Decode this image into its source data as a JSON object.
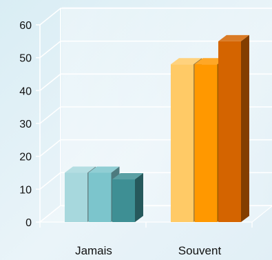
{
  "chart_data": {
    "type": "bar",
    "style": "3d-clustered-columns",
    "categories": [
      "Jamais",
      "Souvent"
    ],
    "series": [
      {
        "values": [
          15,
          48
        ]
      },
      {
        "values": [
          15,
          48
        ]
      },
      {
        "values": [
          13,
          55
        ]
      }
    ],
    "category_colors": {
      "Jamais": [
        "#a7d8dd",
        "#7cc5cc",
        "#3e8f94"
      ],
      "Souvent": [
        "#ffca66",
        "#ff9800",
        "#d46400"
      ]
    },
    "yticks": [
      0,
      10,
      20,
      30,
      40,
      50,
      60
    ],
    "yticklabels": [
      "0",
      "10",
      "20",
      "30",
      "40",
      "50",
      "60"
    ],
    "ylim": [
      0,
      60
    ],
    "grid": true,
    "legend": "none",
    "title": "",
    "xlabel": "",
    "ylabel": ""
  }
}
